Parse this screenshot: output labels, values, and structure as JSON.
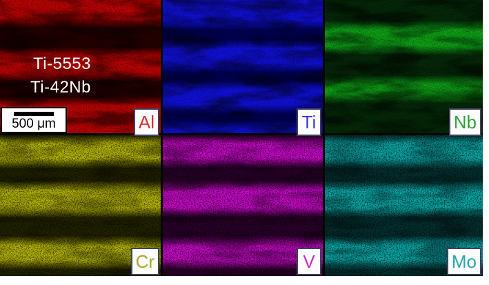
{
  "figure": {
    "type": "EDS elemental map montage",
    "background_color": "#ffffff",
    "gap_color": "#060606",
    "alloy_labels": {
      "top": "Ti-5553",
      "bottom": "Ti-42Nb"
    },
    "scale_bar": {
      "label": "500 μm"
    },
    "rows": [
      {
        "cloud_opacity": 0.5,
        "speckle_opacity": 0.3
      },
      {
        "cloud_opacity": 0.32,
        "speckle_opacity": 0.55
      }
    ],
    "panels": [
      {
        "symbol": "Al",
        "row": 0,
        "bright": "#b80404",
        "dark": "#250000",
        "label_color": "#d43434",
        "seed": 3,
        "bright_ranges": [
          [
            0,
            0.17
          ],
          [
            0.39,
            0.58
          ],
          [
            0.76,
            1
          ]
        ]
      },
      {
        "symbol": "Ti",
        "row": 0,
        "bright": "#1010d8",
        "dark": "#000052",
        "label_color": "#3a3ad4",
        "seed": 7,
        "bright_ranges": [
          [
            0,
            0.19
          ],
          [
            0.33,
            0.51
          ],
          [
            0.64,
            0.82
          ],
          [
            0.94,
            1
          ]
        ]
      },
      {
        "symbol": "Nb",
        "row": 0,
        "bright": "#0e9e16",
        "dark": "#052808",
        "label_color": "#2ea23a",
        "seed": 11,
        "bright_ranges": [
          [
            0.19,
            0.38
          ],
          [
            0.6,
            0.74
          ]
        ]
      },
      {
        "symbol": "Cr",
        "row": 1,
        "bright": "#b2b204",
        "dark": "#232300",
        "label_color": "#a6a62a",
        "seed": 5,
        "bright_ranges": [
          [
            0.02,
            0.2
          ],
          [
            0.36,
            0.55
          ],
          [
            0.75,
            0.92
          ]
        ]
      },
      {
        "symbol": "V",
        "row": 1,
        "bright": "#c608c6",
        "dark": "#2b002b",
        "label_color": "#c42cc4",
        "seed": 9,
        "bright_ranges": [
          [
            0.02,
            0.2
          ],
          [
            0.36,
            0.55
          ],
          [
            0.75,
            0.92
          ]
        ]
      },
      {
        "symbol": "Mo",
        "row": 1,
        "bright": "#0aa4a4",
        "dark": "#053030",
        "label_color": "#2aa8a8",
        "seed": 13,
        "bright_ranges": [
          [
            0.02,
            0.2
          ],
          [
            0.36,
            0.55
          ],
          [
            0.75,
            0.92
          ]
        ]
      }
    ]
  }
}
